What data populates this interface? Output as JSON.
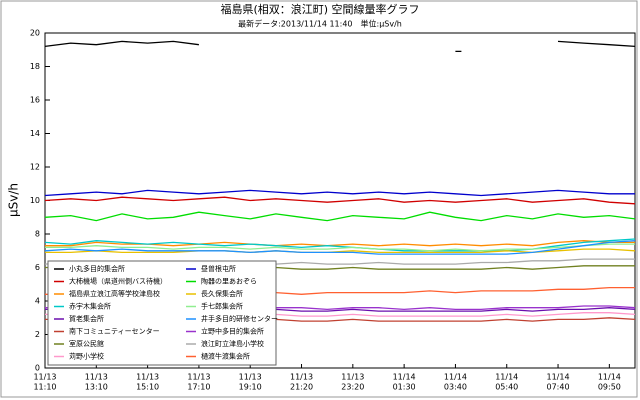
{
  "chart_data": {
    "type": "line",
    "title": "福島県(相双：浪江町) 空間線量率グラフ",
    "subtitle": "最新データ:2013/11/14 11:40　単位:μSv/h",
    "y_label": "μSv/h",
    "categories": [
      [
        "11/13",
        "11:10"
      ],
      null,
      [
        "11/13",
        "13:10"
      ],
      null,
      [
        "11/13",
        "15:10"
      ],
      null,
      [
        "11/13",
        "17:10"
      ],
      null,
      [
        "11/13",
        "19:10"
      ],
      null,
      [
        "11/13",
        "21:20"
      ],
      null,
      [
        "11/13",
        "23:20"
      ],
      null,
      [
        "11/14",
        "01:30"
      ],
      null,
      [
        "11/14",
        "03:40"
      ],
      null,
      [
        "11/14",
        "05:40"
      ],
      null,
      [
        "11/14",
        "07:40"
      ],
      null,
      [
        "11/14",
        "09:50"
      ],
      null
    ],
    "ylim": [
      0,
      20
    ],
    "yticks": [
      0,
      2,
      4,
      6,
      8,
      10,
      12,
      14,
      16,
      18,
      20
    ],
    "series": [
      {
        "name": "小丸多目的集会所",
        "color": "#000000",
        "values": [
          19.2,
          19.4,
          19.3,
          19.5,
          19.4,
          19.5,
          19.3,
          null,
          null,
          null,
          null,
          null,
          null,
          null,
          null,
          null,
          18.9,
          null,
          null,
          null,
          19.5,
          19.4,
          19.3,
          19.2
        ]
      },
      {
        "name": "大柿機場（県道州側バス待機）",
        "color": "#d00000",
        "values": [
          10.0,
          10.1,
          10.0,
          10.2,
          10.1,
          10.0,
          10.1,
          10.2,
          10.0,
          10.1,
          10.0,
          9.9,
          10.0,
          10.1,
          9.9,
          10.0,
          9.9,
          10.0,
          10.1,
          9.9,
          10.0,
          10.1,
          9.9,
          9.8
        ]
      },
      {
        "name": "福島県立浪江高等学校津島校",
        "color": "#ff8c00",
        "values": [
          7.3,
          7.3,
          7.5,
          7.4,
          7.4,
          7.3,
          7.4,
          7.5,
          7.4,
          7.3,
          7.4,
          7.3,
          7.4,
          7.3,
          7.4,
          7.3,
          7.4,
          7.3,
          7.4,
          7.3,
          7.5,
          7.6,
          7.5,
          7.5
        ]
      },
      {
        "name": "赤宇木集会所",
        "color": "#00c8c8",
        "values": [
          7.5,
          7.4,
          7.6,
          7.5,
          7.4,
          7.5,
          7.4,
          7.3,
          7.4,
          7.3,
          7.2,
          7.3,
          7.2,
          7.1,
          7.0,
          7.0,
          7.0,
          7.0,
          7.0,
          7.1,
          7.3,
          7.5,
          7.6,
          7.7
        ]
      },
      {
        "name": "賀老集会所",
        "color": "#6a0dad",
        "values": [
          3.5,
          3.5,
          3.6,
          3.5,
          3.5,
          3.4,
          3.5,
          3.5,
          3.4,
          3.5,
          3.4,
          3.4,
          3.5,
          3.4,
          3.4,
          3.4,
          3.4,
          3.4,
          3.5,
          3.4,
          3.5,
          3.5,
          3.6,
          3.5
        ]
      },
      {
        "name": "南下コミュニティーセンター",
        "color": "#c04030",
        "values": [
          2.9,
          2.9,
          3.0,
          2.9,
          2.9,
          2.8,
          2.9,
          2.9,
          2.8,
          2.9,
          2.8,
          2.8,
          2.9,
          2.8,
          2.8,
          2.8,
          2.8,
          2.8,
          2.9,
          2.8,
          2.9,
          2.9,
          3.0,
          2.9
        ]
      },
      {
        "name": "室原公民館",
        "color": "#708020",
        "values": [
          6.0,
          6.0,
          6.1,
          6.0,
          6.0,
          5.9,
          6.0,
          6.0,
          5.9,
          6.0,
          5.9,
          5.9,
          6.0,
          5.9,
          5.9,
          5.9,
          5.9,
          5.9,
          6.0,
          5.9,
          6.0,
          6.1,
          6.1,
          6.1
        ]
      },
      {
        "name": "苅野小学校",
        "color": "#ff99cc",
        "values": [
          3.2,
          3.2,
          3.3,
          3.2,
          3.2,
          3.1,
          3.2,
          3.2,
          3.1,
          3.2,
          3.1,
          3.1,
          3.2,
          3.1,
          3.1,
          3.1,
          3.1,
          3.1,
          3.2,
          3.1,
          3.2,
          3.3,
          3.3,
          3.2
        ]
      },
      {
        "name": "昼曽根屯所",
        "color": "#0000cc",
        "values": [
          10.3,
          10.4,
          10.5,
          10.4,
          10.6,
          10.5,
          10.4,
          10.5,
          10.6,
          10.5,
          10.4,
          10.5,
          10.4,
          10.5,
          10.4,
          10.5,
          10.4,
          10.3,
          10.4,
          10.5,
          10.6,
          10.5,
          10.4,
          10.4
        ]
      },
      {
        "name": "陶器の里あおぞら",
        "color": "#00dd00",
        "values": [
          9.0,
          9.1,
          8.8,
          9.2,
          8.9,
          9.0,
          9.3,
          9.1,
          8.9,
          9.2,
          9.0,
          8.8,
          9.1,
          9.0,
          8.9,
          9.3,
          9.0,
          8.8,
          9.1,
          8.9,
          9.2,
          9.0,
          9.1,
          8.9
        ]
      },
      {
        "name": "長久保集会所",
        "color": "#e8c000",
        "values": [
          6.9,
          6.9,
          7.0,
          6.9,
          6.9,
          6.9,
          7.0,
          7.0,
          6.9,
          7.0,
          6.9,
          6.9,
          7.0,
          6.9,
          6.9,
          6.9,
          6.9,
          6.9,
          7.0,
          6.9,
          7.0,
          7.1,
          7.1,
          7.0
        ]
      },
      {
        "name": "手七郎集会所",
        "color": "#90ee90",
        "values": [
          7.2,
          7.2,
          7.3,
          7.2,
          7.2,
          7.1,
          7.2,
          7.2,
          7.1,
          7.2,
          7.1,
          7.1,
          7.2,
          7.1,
          7.1,
          7.0,
          7.1,
          7.0,
          7.1,
          7.1,
          7.2,
          7.3,
          7.4,
          7.4
        ]
      },
      {
        "name": "井手多目的研修センター",
        "color": "#1e90ff",
        "values": [
          7.0,
          7.1,
          7.0,
          7.1,
          7.0,
          7.0,
          7.0,
          7.0,
          6.9,
          7.0,
          6.9,
          6.9,
          6.9,
          6.8,
          6.8,
          6.8,
          6.8,
          6.8,
          6.8,
          6.9,
          7.1,
          7.3,
          7.5,
          7.6
        ]
      },
      {
        "name": "立野中多目的集会所",
        "color": "#9932cc",
        "values": [
          3.6,
          3.6,
          3.7,
          3.6,
          3.6,
          3.6,
          3.7,
          3.6,
          3.6,
          3.6,
          3.6,
          3.5,
          3.6,
          3.6,
          3.5,
          3.6,
          3.5,
          3.5,
          3.6,
          3.6,
          3.6,
          3.7,
          3.7,
          3.6
        ]
      },
      {
        "name": "浪江町立津島小学校",
        "color": "#aaaaaa",
        "values": [
          6.2,
          6.3,
          6.3,
          6.2,
          6.3,
          6.3,
          6.2,
          6.3,
          6.3,
          6.2,
          6.3,
          6.2,
          6.2,
          6.3,
          6.2,
          6.2,
          6.2,
          6.3,
          6.3,
          6.4,
          6.4,
          6.5,
          6.5,
          6.5
        ]
      },
      {
        "name": "樋渡牛渡集会所",
        "color": "#ff6030",
        "values": [
          4.4,
          4.4,
          4.5,
          4.4,
          4.4,
          4.5,
          4.5,
          4.4,
          4.5,
          4.5,
          4.4,
          4.5,
          4.5,
          4.5,
          4.5,
          4.6,
          4.5,
          4.6,
          4.6,
          4.6,
          4.7,
          4.7,
          4.8,
          4.8
        ]
      }
    ]
  }
}
